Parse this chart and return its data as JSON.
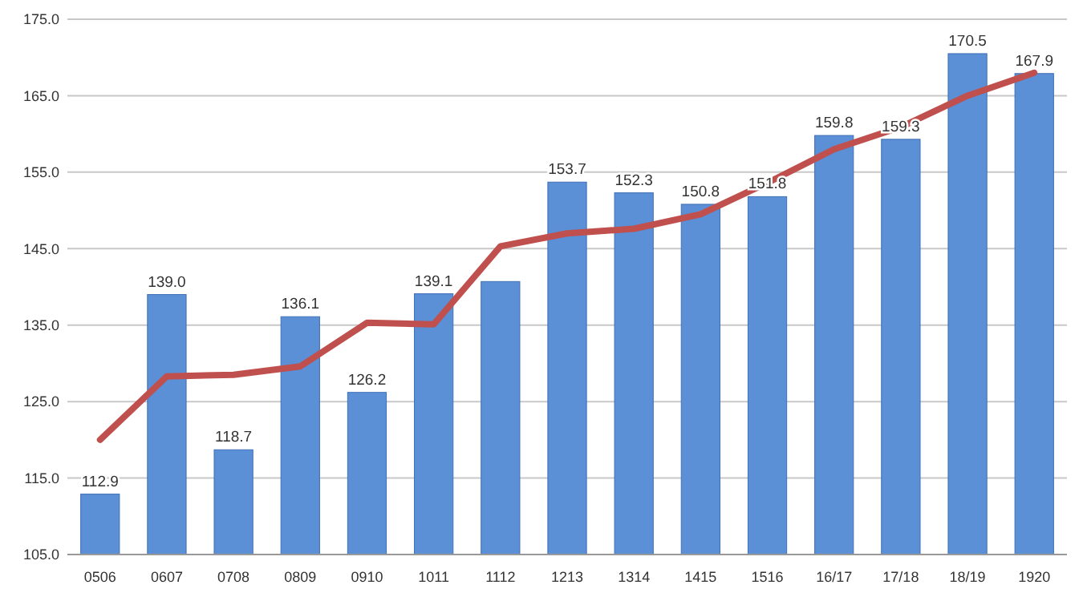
{
  "chart_data": {
    "type": "bar",
    "categories": [
      "0506",
      "0607",
      "0708",
      "0809",
      "0910",
      "1011",
      "1112",
      "1213",
      "1314",
      "1415",
      "1516",
      "16/17",
      "17/18",
      "18/19",
      "1920"
    ],
    "series": [
      {
        "color": "#5b8fd6",
        "values": [
          112.9,
          139.0,
          118.7,
          136.1,
          126.2,
          139.1,
          140.7,
          153.7,
          152.3,
          150.8,
          151.8,
          159.8,
          159.3,
          170.5,
          167.9
        ],
        "value_labels": [
          "112.9",
          "139.0",
          "118.7",
          "136.1",
          "126.2",
          "139.1",
          null,
          "153.7",
          "152.3",
          "150.8",
          "151.8",
          "159.8",
          "159.3",
          "170.5",
          "167.9"
        ]
      },
      {
        "type": "line",
        "color": "#c0504d",
        "values": [
          120.0,
          128.3,
          128.5,
          129.6,
          135.3,
          135.1,
          145.3,
          147.0,
          147.6,
          149.5,
          153.6,
          158.0,
          160.9,
          165.0,
          168.0
        ]
      }
    ],
    "ylim": [
      105,
      175
    ],
    "yticks": [
      {
        "value": 105,
        "label": "105.0"
      },
      {
        "value": 115,
        "label": "115.0"
      },
      {
        "value": 125,
        "label": "125.0"
      },
      {
        "value": 135,
        "label": "135.0"
      },
      {
        "value": 145,
        "label": "145.0"
      },
      {
        "value": 155,
        "label": "155.0"
      },
      {
        "value": 165,
        "label": "165.0"
      },
      {
        "value": 175,
        "label": "175.0"
      }
    ],
    "grid": "y",
    "marker": "none",
    "line_style": "solid"
  }
}
